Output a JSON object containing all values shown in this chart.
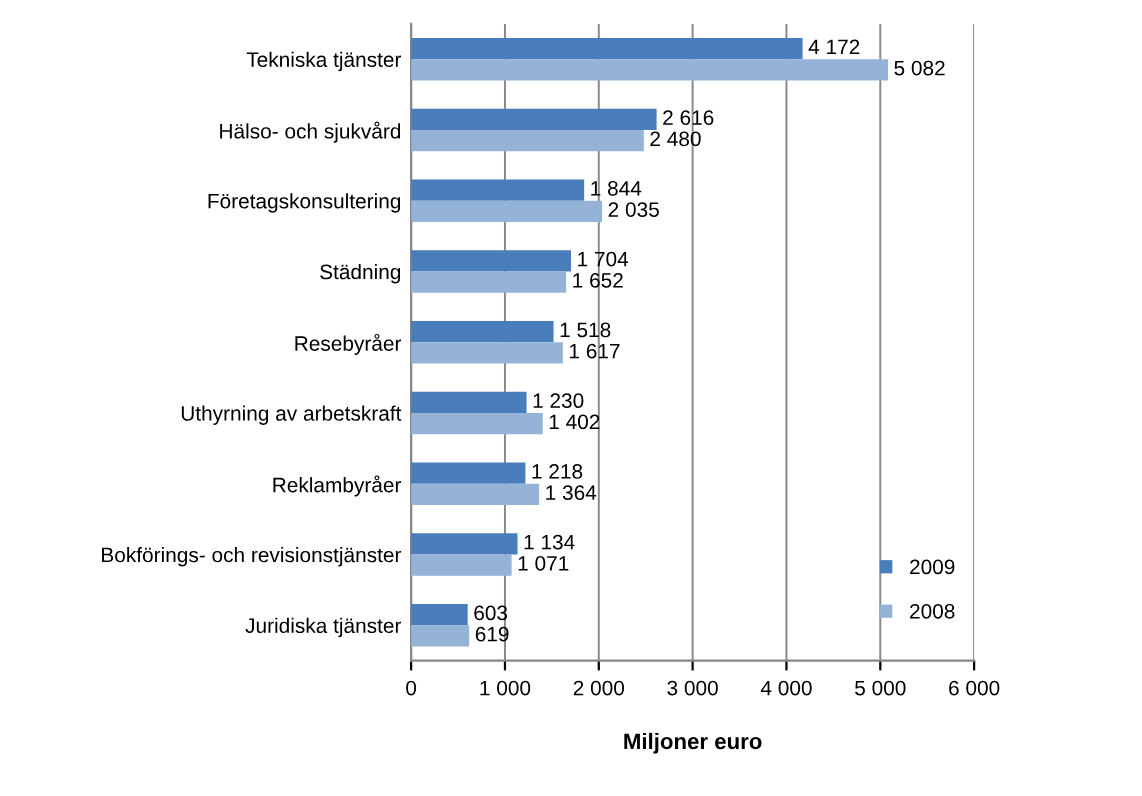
{
  "chart_data": {
    "type": "bar",
    "orientation": "horizontal",
    "xlabel": "Miljoner euro",
    "categories": [
      "Tekniska tjänster",
      "Hälso- och sjukvård",
      "Företagskonsultering",
      "Städning",
      "Resebyråer",
      "Uthyrning av arbetskraft",
      "Reklambyråer",
      "Bokförings- och revisionstjänster",
      "Juridiska tjänster"
    ],
    "series": [
      {
        "name": "2009",
        "color": "#4a7ebb",
        "values": [
          4172,
          2616,
          1844,
          1704,
          1518,
          1230,
          1218,
          1134,
          603
        ],
        "value_labels": [
          "4 172",
          "2 616",
          "1 844",
          "1 704",
          "1 518",
          "1 230",
          "1 218",
          "1 134",
          "603"
        ]
      },
      {
        "name": "2008",
        "color": "#95b3d7",
        "values": [
          5082,
          2480,
          2035,
          1652,
          1617,
          1402,
          1364,
          1071,
          619
        ],
        "value_labels": [
          "5 082",
          "2 480",
          "2 035",
          "1 652",
          "1 617",
          "1 402",
          "1 364",
          "1 071",
          "619"
        ]
      }
    ],
    "xlim": [
      0,
      6000
    ],
    "xticks": [
      0,
      {
        "value": 1000,
        "label": "1 000"
      },
      {
        "value": 2000,
        "label": "2 000"
      },
      {
        "value": 3000,
        "label": "3 000"
      },
      {
        "value": 4000,
        "label": "4 000"
      },
      {
        "value": 5000,
        "label": "5 000"
      },
      {
        "value": 6000,
        "label": "6 000"
      }
    ],
    "grid": "x",
    "legend": "bottom right"
  }
}
